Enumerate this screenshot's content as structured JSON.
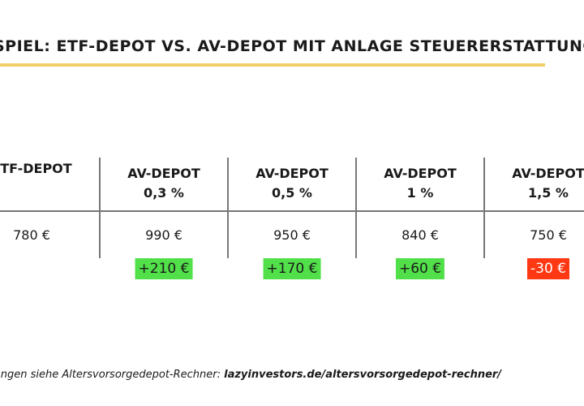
{
  "title": "SPIEL: ETF-DEPOT VS. AV-DEPOT MIT ANLAGE STEUERERSTATTUNG",
  "table": {
    "columns": [
      {
        "head1": "ETF-DEPOT",
        "head2": "",
        "value": "780 €",
        "diff": "",
        "diff_type": "none"
      },
      {
        "head1": "AV-DEPOT",
        "head2": "0,3 %",
        "value": "990 €",
        "diff": "+210 €",
        "diff_type": "positive"
      },
      {
        "head1": "AV-DEPOT",
        "head2": "0,5 %",
        "value": "950 €",
        "diff": "+170 €",
        "diff_type": "positive"
      },
      {
        "head1": "AV-DEPOT",
        "head2": "1 %",
        "value": "840 €",
        "diff": "+60 €",
        "diff_type": "positive"
      },
      {
        "head1": "AV-DEPOT",
        "head2": "1,5 %",
        "value": "750 €",
        "diff": "-30 €",
        "diff_type": "negative"
      }
    ]
  },
  "footnote": {
    "text": "hnungen siehe Altersvorsorgedepot-Rechner: ",
    "link": "lazyinvestors.de/altersvorsorgedepot-rechner/"
  },
  "colors": {
    "underline": "#f2cf6a",
    "positive": "#52e04a",
    "negative": "#ff3814"
  }
}
